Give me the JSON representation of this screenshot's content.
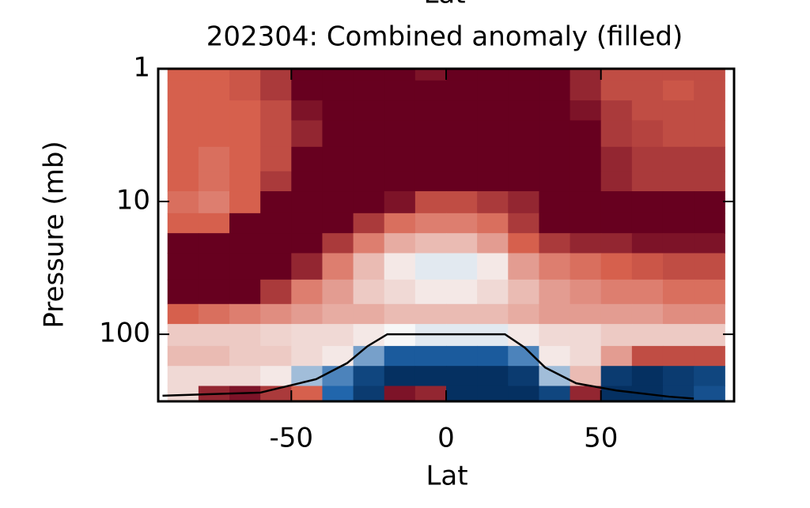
{
  "chart_data": {
    "type": "heatmap",
    "top_label": "Lat",
    "title": "202304: Combined anomaly (filled)",
    "xlabel": "Lat",
    "ylabel": "Pressure (mb)",
    "xlim": [
      -93,
      93
    ],
    "xticks": [
      -50,
      0,
      50
    ],
    "ylim": [
      1,
      320
    ],
    "yticks": [
      1,
      10,
      100
    ],
    "ylog": true,
    "yreversed": true,
    "zlim": [
      -1,
      1
    ],
    "colormap": [
      "#053061",
      "#2166ac",
      "#f7f7f7",
      "#d6604d",
      "#67001f"
    ],
    "x": [
      -85,
      -75,
      -65,
      -55,
      -45,
      -35,
      -25,
      -15,
      -5,
      5,
      15,
      25,
      35,
      45,
      55,
      65,
      75,
      85
    ],
    "y": [
      1,
      1.5,
      2,
      3,
      5,
      7,
      10,
      15,
      20,
      30,
      50,
      70,
      100,
      150,
      200,
      300
    ],
    "z": [
      [
        0.5,
        0.5,
        0.55,
        0.7,
        1,
        1,
        1,
        1,
        0.9,
        1,
        1,
        1,
        1,
        0.8,
        0.6,
        0.6,
        0.6,
        0.6
      ],
      [
        0.5,
        0.5,
        0.55,
        0.7,
        1,
        1,
        1,
        1,
        1,
        1,
        1,
        1,
        1,
        0.8,
        0.6,
        0.6,
        0.55,
        0.6
      ],
      [
        0.5,
        0.5,
        0.5,
        0.6,
        0.9,
        1,
        1,
        1,
        1,
        1,
        1,
        1,
        1,
        0.9,
        0.7,
        0.6,
        0.6,
        0.6
      ],
      [
        0.5,
        0.5,
        0.5,
        0.6,
        0.8,
        1,
        1,
        1,
        1,
        1,
        1,
        1,
        1,
        1,
        0.7,
        0.65,
        0.6,
        0.6
      ],
      [
        0.5,
        0.45,
        0.5,
        0.6,
        1,
        1,
        1,
        1,
        1,
        1,
        1,
        1,
        1,
        1,
        0.8,
        0.7,
        0.7,
        0.7
      ],
      [
        0.5,
        0.45,
        0.5,
        0.7,
        1,
        1,
        1,
        1,
        1,
        1,
        1,
        1,
        1,
        1,
        0.8,
        0.7,
        0.7,
        0.7
      ],
      [
        0.45,
        0.4,
        0.5,
        1,
        1,
        1,
        1,
        0.9,
        0.6,
        0.6,
        0.7,
        0.8,
        1,
        1,
        1,
        1,
        1,
        1
      ],
      [
        0.5,
        0.5,
        1,
        1,
        1,
        1,
        0.7,
        0.45,
        0.4,
        0.4,
        0.45,
        0.7,
        1,
        1,
        1,
        1,
        1,
        1
      ],
      [
        1,
        1,
        1,
        1,
        1,
        0.7,
        0.4,
        0.25,
        0.2,
        0.2,
        0.3,
        0.5,
        0.7,
        0.8,
        0.8,
        0.9,
        0.9,
        0.9
      ],
      [
        1,
        1,
        1,
        1,
        0.8,
        0.4,
        0.2,
        0.05,
        -0.05,
        -0.05,
        0.05,
        0.3,
        0.4,
        0.45,
        0.5,
        0.55,
        0.6,
        0.6
      ],
      [
        1,
        1,
        1,
        0.7,
        0.4,
        0.3,
        0.15,
        0.1,
        0.05,
        0.05,
        0.1,
        0.2,
        0.3,
        0.35,
        0.4,
        0.4,
        0.45,
        0.45
      ],
      [
        0.5,
        0.45,
        0.4,
        0.35,
        0.3,
        0.25,
        0.25,
        0.2,
        0.2,
        0.2,
        0.2,
        0.25,
        0.3,
        0.3,
        0.3,
        0.3,
        0.35,
        0.35
      ],
      [
        0.15,
        0.15,
        0.15,
        0.12,
        0.1,
        0.1,
        0.05,
        0,
        -0.05,
        -0.05,
        -0.05,
        0.05,
        0.1,
        0.1,
        0.15,
        0.15,
        0.15,
        0.15
      ],
      [
        0.2,
        0.2,
        0.15,
        0.15,
        0.1,
        0.05,
        -0.3,
        -0.6,
        -0.6,
        -0.6,
        -0.6,
        -0.4,
        0.05,
        0.1,
        0.3,
        0.6,
        0.6,
        0.6
      ],
      [
        0.1,
        0.1,
        0.1,
        0.05,
        -0.2,
        -0.4,
        -0.8,
        -1,
        -1,
        -1,
        -1,
        -0.9,
        -0.2,
        0.2,
        -0.9,
        -1,
        -0.9,
        -0.8
      ],
      [
        0.1,
        0.8,
        0.9,
        0.7,
        0.5,
        -0.5,
        -0.9,
        0.9,
        0.8,
        -1,
        -1,
        -1,
        -0.8,
        0.8,
        -1,
        -1,
        -0.9,
        -0.7
      ]
    ],
    "line": {
      "color": "#000000",
      "x": [
        -91.6,
        -60,
        -42,
        -32,
        -25.4,
        -19,
        19,
        25.4,
        32,
        42,
        55,
        72,
        80
      ],
      "y": [
        290,
        275,
        218,
        165,
        123,
        100,
        100,
        126,
        178,
        234,
        265,
        295,
        305
      ]
    }
  }
}
